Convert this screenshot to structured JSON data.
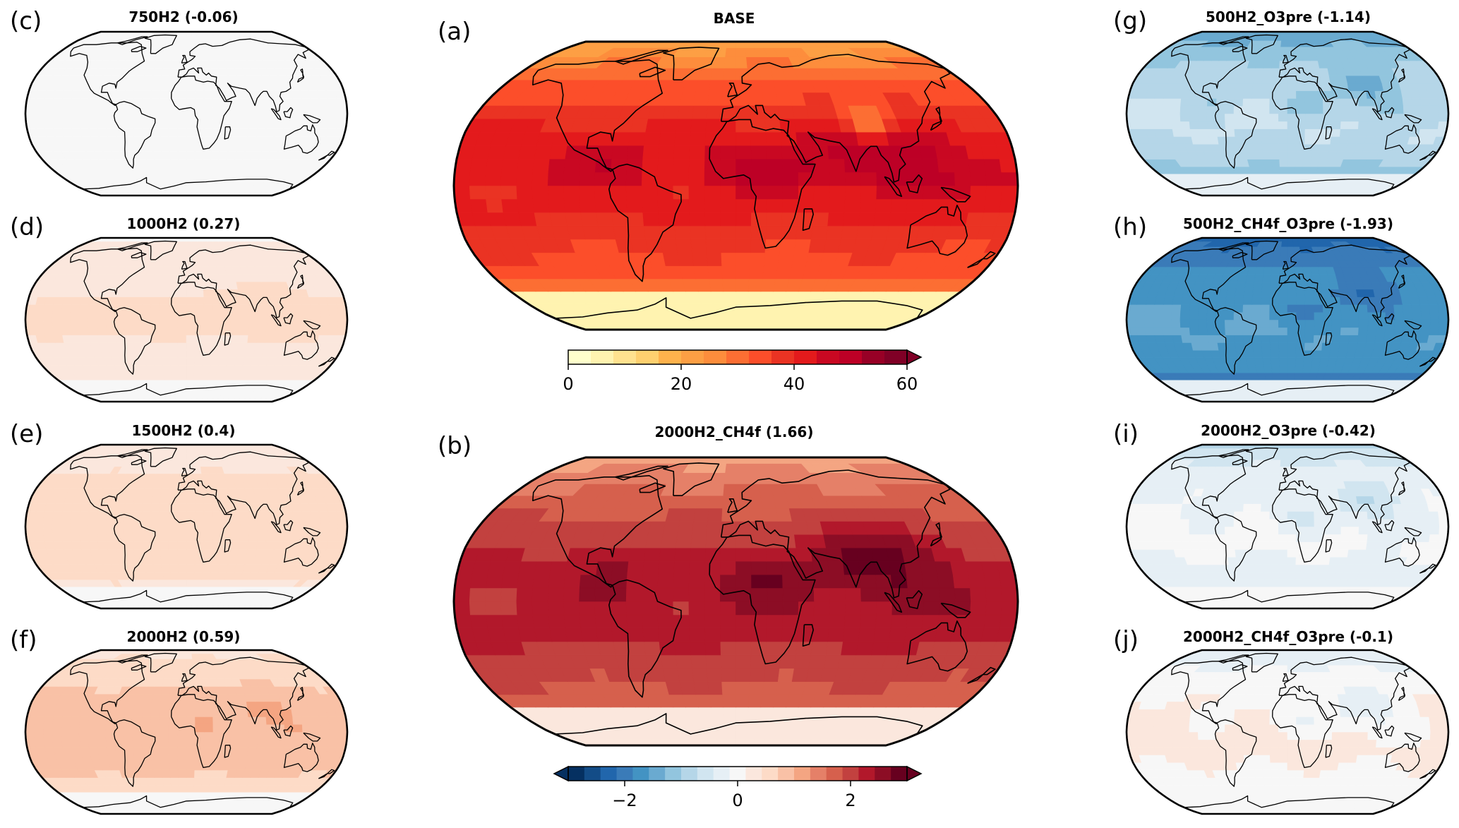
{
  "panels": {
    "a": {
      "letter": "(a)",
      "title": "BASE",
      "scheme": "ylorrd",
      "base": 30,
      "amp": 12,
      "hotspots": 1.0
    },
    "b": {
      "letter": "(b)",
      "title": "2000H2_CH4f (1.66)",
      "scheme": "rdbu",
      "base": 1.66,
      "amp": 0.7,
      "hotspots": 1.0
    },
    "c": {
      "letter": "(c)",
      "title": "750H2 (-0.06)",
      "scheme": "rdbu",
      "base": -0.06,
      "amp": 0.05,
      "hotspots": 0.3
    },
    "d": {
      "letter": "(d)",
      "title": "1000H2 (0.27)",
      "scheme": "rdbu",
      "base": 0.27,
      "amp": 0.22,
      "hotspots": 0.4
    },
    "e": {
      "letter": "(e)",
      "title": "1500H2 (0.4)",
      "scheme": "rdbu",
      "base": 0.4,
      "amp": 0.25,
      "hotspots": 0.5
    },
    "f": {
      "letter": "(f)",
      "title": "2000H2 (0.59)",
      "scheme": "rdbu",
      "base": 0.59,
      "amp": 0.35,
      "hotspots": 0.6
    },
    "g": {
      "letter": "(g)",
      "title": "500H2_O3pre (-1.14)",
      "scheme": "rdbu",
      "base": -1.14,
      "amp": 0.6,
      "hotspots": 1.0
    },
    "h": {
      "letter": "(h)",
      "title": "500H2_CH4f_O3pre (-1.93)",
      "scheme": "rdbu",
      "base": -1.93,
      "amp": 0.5,
      "hotspots": 1.0
    },
    "i": {
      "letter": "(i)",
      "title": "2000H2_O3pre (-0.42)",
      "scheme": "rdbu",
      "base": -0.42,
      "amp": 0.45,
      "hotspots": 1.2
    },
    "j": {
      "letter": "(j)",
      "title": "2000H2_CH4f_O3pre (-0.1)",
      "scheme": "rdbu",
      "base": -0.1,
      "amp": 0.45,
      "hotspots": 1.2
    }
  },
  "colorbars": {
    "top": {
      "min": 0,
      "max": 60,
      "ticks": [
        0,
        20,
        40,
        60
      ],
      "tick_labels": [
        "0",
        "20",
        "40",
        "60"
      ],
      "scheme": "ylorrd",
      "extend": "max"
    },
    "bottom": {
      "min": -3,
      "max": 3,
      "ticks": [
        -2,
        0,
        2
      ],
      "tick_labels": [
        "−2",
        "0",
        "2"
      ],
      "scheme": "rdbu",
      "extend": "both"
    }
  }
}
